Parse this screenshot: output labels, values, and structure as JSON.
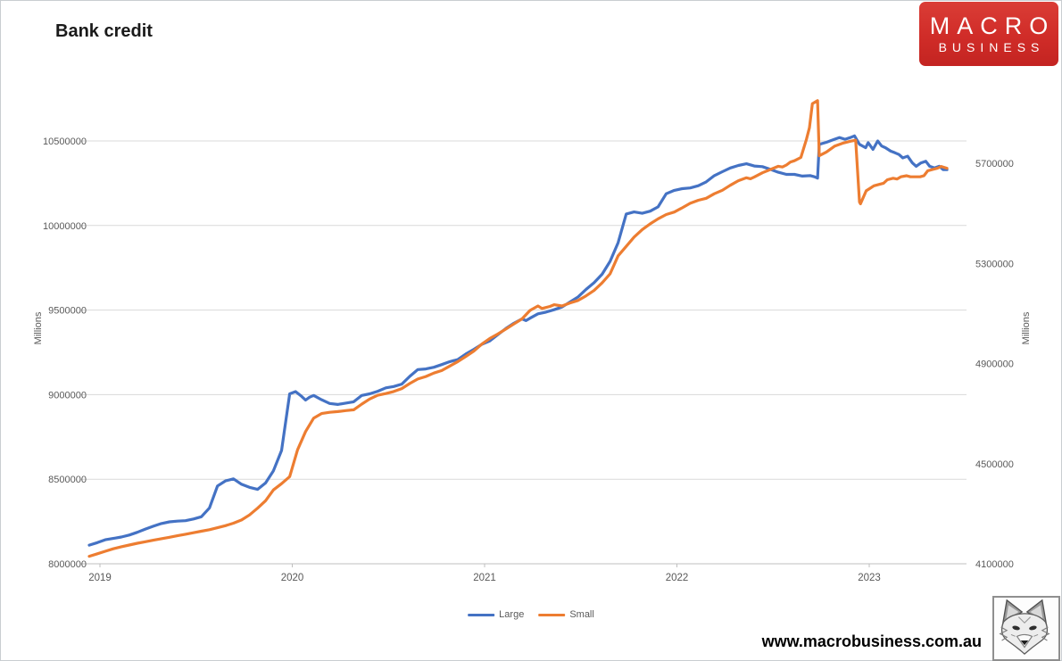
{
  "title": "Bank credit",
  "logo": {
    "line1": "MACRO",
    "line2": "BUSINESS",
    "background": "#d02c28"
  },
  "footer": {
    "url": "www.macrobusiness.com.au"
  },
  "chart_data": {
    "type": "line",
    "title": "Bank credit",
    "grid": true,
    "legend_position": "bottom",
    "x_axis": {
      "tick_labels": [
        "2019",
        "2020",
        "2021",
        "2022",
        "2023"
      ],
      "tick_years": [
        2019,
        2020,
        2021,
        2022,
        2023
      ]
    },
    "left_axis": {
      "title": "Millions",
      "ticks": [
        8000000,
        8500000,
        9000000,
        9500000,
        10000000,
        10500000
      ],
      "min": 8000000,
      "max": 10750000
    },
    "right_axis": {
      "title": "Millions",
      "ticks": [
        4100000,
        4500000,
        4900000,
        5300000,
        5700000
      ],
      "min": 4100000,
      "max": 5960000
    },
    "colors": {
      "grid": "#d9d9d9",
      "axis": "#bfbfbf",
      "tick_text": "#595959"
    },
    "series": [
      {
        "name": "Large",
        "axis": "left",
        "color": "#4472C4",
        "points": [
          [
            2019.0,
            8110000
          ],
          [
            2019.042,
            8125000
          ],
          [
            2019.083,
            8142000
          ],
          [
            2019.125,
            8150000
          ],
          [
            2019.167,
            8158000
          ],
          [
            2019.208,
            8170000
          ],
          [
            2019.25,
            8186000
          ],
          [
            2019.292,
            8205000
          ],
          [
            2019.333,
            8222000
          ],
          [
            2019.375,
            8238000
          ],
          [
            2019.417,
            8248000
          ],
          [
            2019.458,
            8252000
          ],
          [
            2019.5,
            8255000
          ],
          [
            2019.542,
            8265000
          ],
          [
            2019.583,
            8278000
          ],
          [
            2019.625,
            8330000
          ],
          [
            2019.667,
            8460000
          ],
          [
            2019.708,
            8490000
          ],
          [
            2019.75,
            8502000
          ],
          [
            2019.792,
            8470000
          ],
          [
            2019.833,
            8452000
          ],
          [
            2019.875,
            8440000
          ],
          [
            2019.917,
            8478000
          ],
          [
            2019.958,
            8550000
          ],
          [
            2020.0,
            8670000
          ],
          [
            2020.042,
            9005000
          ],
          [
            2020.073,
            9018000
          ],
          [
            2020.104,
            8990000
          ],
          [
            2020.125,
            8968000
          ],
          [
            2020.146,
            8985000
          ],
          [
            2020.167,
            8995000
          ],
          [
            2020.208,
            8970000
          ],
          [
            2020.25,
            8948000
          ],
          [
            2020.292,
            8942000
          ],
          [
            2020.333,
            8950000
          ],
          [
            2020.375,
            8958000
          ],
          [
            2020.417,
            8995000
          ],
          [
            2020.458,
            9005000
          ],
          [
            2020.5,
            9020000
          ],
          [
            2020.542,
            9040000
          ],
          [
            2020.583,
            9048000
          ],
          [
            2020.625,
            9062000
          ],
          [
            2020.667,
            9108000
          ],
          [
            2020.708,
            9148000
          ],
          [
            2020.75,
            9152000
          ],
          [
            2020.792,
            9162000
          ],
          [
            2020.833,
            9178000
          ],
          [
            2020.875,
            9195000
          ],
          [
            2020.917,
            9208000
          ],
          [
            2020.958,
            9240000
          ],
          [
            2021.0,
            9268000
          ],
          [
            2021.042,
            9298000
          ],
          [
            2021.083,
            9318000
          ],
          [
            2021.125,
            9355000
          ],
          [
            2021.167,
            9392000
          ],
          [
            2021.208,
            9422000
          ],
          [
            2021.25,
            9448000
          ],
          [
            2021.271,
            9438000
          ],
          [
            2021.292,
            9452000
          ],
          [
            2021.333,
            9478000
          ],
          [
            2021.375,
            9488000
          ],
          [
            2021.417,
            9502000
          ],
          [
            2021.458,
            9518000
          ],
          [
            2021.5,
            9548000
          ],
          [
            2021.542,
            9578000
          ],
          [
            2021.583,
            9622000
          ],
          [
            2021.625,
            9662000
          ],
          [
            2021.667,
            9712000
          ],
          [
            2021.708,
            9788000
          ],
          [
            2021.75,
            9898000
          ],
          [
            2021.792,
            10068000
          ],
          [
            2021.833,
            10080000
          ],
          [
            2021.875,
            10072000
          ],
          [
            2021.917,
            10085000
          ],
          [
            2021.958,
            10110000
          ],
          [
            2022.0,
            10188000
          ],
          [
            2022.042,
            10208000
          ],
          [
            2022.083,
            10218000
          ],
          [
            2022.125,
            10222000
          ],
          [
            2022.167,
            10235000
          ],
          [
            2022.208,
            10258000
          ],
          [
            2022.25,
            10295000
          ],
          [
            2022.292,
            10318000
          ],
          [
            2022.333,
            10340000
          ],
          [
            2022.375,
            10355000
          ],
          [
            2022.417,
            10365000
          ],
          [
            2022.458,
            10352000
          ],
          [
            2022.5,
            10348000
          ],
          [
            2022.542,
            10332000
          ],
          [
            2022.583,
            10315000
          ],
          [
            2022.625,
            10302000
          ],
          [
            2022.667,
            10302000
          ],
          [
            2022.708,
            10292000
          ],
          [
            2022.75,
            10295000
          ],
          [
            2022.771,
            10288000
          ],
          [
            2022.787,
            10280000
          ],
          [
            2022.796,
            10480000
          ],
          [
            2022.833,
            10492000
          ],
          [
            2022.875,
            10510000
          ],
          [
            2022.9,
            10520000
          ],
          [
            2022.93,
            10510000
          ],
          [
            2022.958,
            10520000
          ],
          [
            2022.979,
            10530000
          ],
          [
            2023.005,
            10480000
          ],
          [
            2023.037,
            10460000
          ],
          [
            2023.05,
            10490000
          ],
          [
            2023.075,
            10450000
          ],
          [
            2023.1,
            10500000
          ],
          [
            2023.12,
            10470000
          ],
          [
            2023.14,
            10460000
          ],
          [
            2023.167,
            10440000
          ],
          [
            2023.19,
            10430000
          ],
          [
            2023.21,
            10420000
          ],
          [
            2023.23,
            10400000
          ],
          [
            2023.255,
            10410000
          ],
          [
            2023.28,
            10370000
          ],
          [
            2023.3,
            10350000
          ],
          [
            2023.325,
            10370000
          ],
          [
            2023.35,
            10380000
          ],
          [
            2023.37,
            10350000
          ],
          [
            2023.395,
            10340000
          ],
          [
            2023.42,
            10350000
          ],
          [
            2023.44,
            10330000
          ],
          [
            2023.46,
            10330000
          ]
        ]
      },
      {
        "name": "Small",
        "axis": "right",
        "color": "#ED7D31",
        "points": [
          [
            2019.0,
            4130000
          ],
          [
            2019.042,
            4140000
          ],
          [
            2019.083,
            4150000
          ],
          [
            2019.125,
            4160000
          ],
          [
            2019.167,
            4168000
          ],
          [
            2019.208,
            4175000
          ],
          [
            2019.25,
            4182000
          ],
          [
            2019.292,
            4188000
          ],
          [
            2019.333,
            4194000
          ],
          [
            2019.375,
            4200000
          ],
          [
            2019.417,
            4206000
          ],
          [
            2019.458,
            4212000
          ],
          [
            2019.5,
            4218000
          ],
          [
            2019.542,
            4224000
          ],
          [
            2019.583,
            4230000
          ],
          [
            2019.625,
            4236000
          ],
          [
            2019.667,
            4244000
          ],
          [
            2019.708,
            4252000
          ],
          [
            2019.75,
            4262000
          ],
          [
            2019.792,
            4275000
          ],
          [
            2019.833,
            4295000
          ],
          [
            2019.875,
            4322000
          ],
          [
            2019.917,
            4352000
          ],
          [
            2019.958,
            4395000
          ],
          [
            2020.0,
            4420000
          ],
          [
            2020.042,
            4448000
          ],
          [
            2020.083,
            4555000
          ],
          [
            2020.125,
            4628000
          ],
          [
            2020.167,
            4682000
          ],
          [
            2020.208,
            4700000
          ],
          [
            2020.25,
            4705000
          ],
          [
            2020.292,
            4708000
          ],
          [
            2020.333,
            4712000
          ],
          [
            2020.375,
            4715000
          ],
          [
            2020.417,
            4738000
          ],
          [
            2020.458,
            4758000
          ],
          [
            2020.5,
            4773000
          ],
          [
            2020.542,
            4780000
          ],
          [
            2020.583,
            4788000
          ],
          [
            2020.625,
            4800000
          ],
          [
            2020.667,
            4820000
          ],
          [
            2020.708,
            4838000
          ],
          [
            2020.75,
            4848000
          ],
          [
            2020.792,
            4862000
          ],
          [
            2020.833,
            4872000
          ],
          [
            2020.875,
            4890000
          ],
          [
            2020.917,
            4908000
          ],
          [
            2020.958,
            4928000
          ],
          [
            2021.0,
            4950000
          ],
          [
            2021.042,
            4978000
          ],
          [
            2021.083,
            5000000
          ],
          [
            2021.125,
            5018000
          ],
          [
            2021.167,
            5038000
          ],
          [
            2021.208,
            5058000
          ],
          [
            2021.25,
            5078000
          ],
          [
            2021.292,
            5112000
          ],
          [
            2021.333,
            5130000
          ],
          [
            2021.354,
            5120000
          ],
          [
            2021.396,
            5128000
          ],
          [
            2021.417,
            5135000
          ],
          [
            2021.458,
            5130000
          ],
          [
            2021.5,
            5142000
          ],
          [
            2021.542,
            5152000
          ],
          [
            2021.583,
            5170000
          ],
          [
            2021.625,
            5192000
          ],
          [
            2021.667,
            5222000
          ],
          [
            2021.708,
            5258000
          ],
          [
            2021.75,
            5330000
          ],
          [
            2021.792,
            5368000
          ],
          [
            2021.833,
            5405000
          ],
          [
            2021.875,
            5435000
          ],
          [
            2021.917,
            5458000
          ],
          [
            2021.958,
            5478000
          ],
          [
            2022.0,
            5495000
          ],
          [
            2022.042,
            5505000
          ],
          [
            2022.083,
            5522000
          ],
          [
            2022.125,
            5540000
          ],
          [
            2022.167,
            5552000
          ],
          [
            2022.208,
            5560000
          ],
          [
            2022.25,
            5578000
          ],
          [
            2022.292,
            5592000
          ],
          [
            2022.333,
            5612000
          ],
          [
            2022.375,
            5630000
          ],
          [
            2022.417,
            5642000
          ],
          [
            2022.438,
            5638000
          ],
          [
            2022.458,
            5645000
          ],
          [
            2022.5,
            5662000
          ],
          [
            2022.542,
            5675000
          ],
          [
            2022.583,
            5688000
          ],
          [
            2022.604,
            5685000
          ],
          [
            2022.625,
            5693000
          ],
          [
            2022.646,
            5705000
          ],
          [
            2022.667,
            5710000
          ],
          [
            2022.7,
            5723000
          ],
          [
            2022.729,
            5795000
          ],
          [
            2022.745,
            5842000
          ],
          [
            2022.76,
            5938000
          ],
          [
            2022.787,
            5950000
          ],
          [
            2022.796,
            5730000
          ],
          [
            2022.833,
            5745000
          ],
          [
            2022.875,
            5768000
          ],
          [
            2022.917,
            5780000
          ],
          [
            2022.958,
            5788000
          ],
          [
            2022.985,
            5792000
          ],
          [
            2023.005,
            5545000
          ],
          [
            2023.01,
            5538000
          ],
          [
            2023.04,
            5590000
          ],
          [
            2023.06,
            5600000
          ],
          [
            2023.08,
            5610000
          ],
          [
            2023.11,
            5616000
          ],
          [
            2023.13,
            5620000
          ],
          [
            2023.15,
            5634000
          ],
          [
            2023.18,
            5640000
          ],
          [
            2023.2,
            5637000
          ],
          [
            2023.22,
            5646000
          ],
          [
            2023.25,
            5650000
          ],
          [
            2023.27,
            5646000
          ],
          [
            2023.29,
            5646000
          ],
          [
            2023.32,
            5646000
          ],
          [
            2023.34,
            5650000
          ],
          [
            2023.36,
            5670000
          ],
          [
            2023.385,
            5675000
          ],
          [
            2023.41,
            5680000
          ],
          [
            2023.43,
            5687000
          ],
          [
            2023.46,
            5680000
          ]
        ]
      }
    ]
  }
}
